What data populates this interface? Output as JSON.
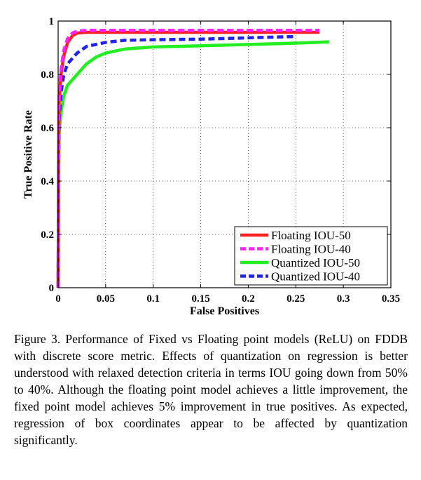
{
  "chart_data": {
    "type": "line",
    "title": "",
    "xlabel": "False Positives",
    "ylabel": "True Positive Rate",
    "xlim": [
      0,
      0.35
    ],
    "ylim": [
      0,
      1
    ],
    "xticks": [
      "0",
      "0.05",
      "0.1",
      "0.15",
      "0.2",
      "0.25",
      "0.3",
      "0.35"
    ],
    "yticks": [
      "0",
      "0.2",
      "0.4",
      "0.6",
      "0.8",
      "1"
    ],
    "grid": true,
    "legend_position": "bottom-right",
    "series": [
      {
        "name": "Floating IOU-50",
        "color": "#ff2020",
        "style": "solid",
        "points": [
          [
            0,
            0
          ],
          [
            0.0005,
            0.5
          ],
          [
            0.001,
            0.7
          ],
          [
            0.003,
            0.8
          ],
          [
            0.006,
            0.87
          ],
          [
            0.01,
            0.92
          ],
          [
            0.015,
            0.945
          ],
          [
            0.02,
            0.955
          ],
          [
            0.03,
            0.958
          ],
          [
            0.05,
            0.958
          ],
          [
            0.1,
            0.958
          ],
          [
            0.2,
            0.958
          ],
          [
            0.275,
            0.958
          ]
        ]
      },
      {
        "name": "Floating IOU-40",
        "color": "#ff22ff",
        "style": "dashed",
        "points": [
          [
            0,
            0
          ],
          [
            0.0005,
            0.55
          ],
          [
            0.001,
            0.72
          ],
          [
            0.003,
            0.82
          ],
          [
            0.006,
            0.89
          ],
          [
            0.01,
            0.935
          ],
          [
            0.015,
            0.955
          ],
          [
            0.02,
            0.962
          ],
          [
            0.03,
            0.965
          ],
          [
            0.05,
            0.965
          ],
          [
            0.1,
            0.965
          ],
          [
            0.2,
            0.965
          ],
          [
            0.275,
            0.965
          ]
        ]
      },
      {
        "name": "Quantized IOU-50",
        "color": "#22ee22",
        "style": "solid",
        "points": [
          [
            0,
            0
          ],
          [
            0.0005,
            0.4
          ],
          [
            0.001,
            0.58
          ],
          [
            0.003,
            0.66
          ],
          [
            0.006,
            0.72
          ],
          [
            0.01,
            0.76
          ],
          [
            0.02,
            0.8
          ],
          [
            0.03,
            0.84
          ],
          [
            0.04,
            0.865
          ],
          [
            0.05,
            0.88
          ],
          [
            0.07,
            0.895
          ],
          [
            0.1,
            0.903
          ],
          [
            0.15,
            0.907
          ],
          [
            0.2,
            0.912
          ],
          [
            0.25,
            0.917
          ],
          [
            0.285,
            0.922
          ]
        ]
      },
      {
        "name": "Quantized IOU-40",
        "color": "#2222ee",
        "style": "dashed",
        "points": [
          [
            0,
            0
          ],
          [
            0.0005,
            0.45
          ],
          [
            0.001,
            0.63
          ],
          [
            0.003,
            0.73
          ],
          [
            0.006,
            0.8
          ],
          [
            0.01,
            0.84
          ],
          [
            0.02,
            0.88
          ],
          [
            0.03,
            0.905
          ],
          [
            0.05,
            0.92
          ],
          [
            0.07,
            0.928
          ],
          [
            0.1,
            0.93
          ],
          [
            0.15,
            0.932
          ],
          [
            0.2,
            0.937
          ],
          [
            0.25,
            0.942
          ]
        ]
      }
    ]
  },
  "caption": "Figure 3. Performance of Fixed vs Floating point models (ReLU) on FDDB with discrete score metric.  Effects of quantization on regression is better understood with relaxed detection criteria in terms IOU going down from 50% to 40%.  Although the floating point model achieves a little improvement, the fixed point model achieves 5% improvement in true positives.  As expected, regression of box coordinates appear to be affected by quantization significantly."
}
